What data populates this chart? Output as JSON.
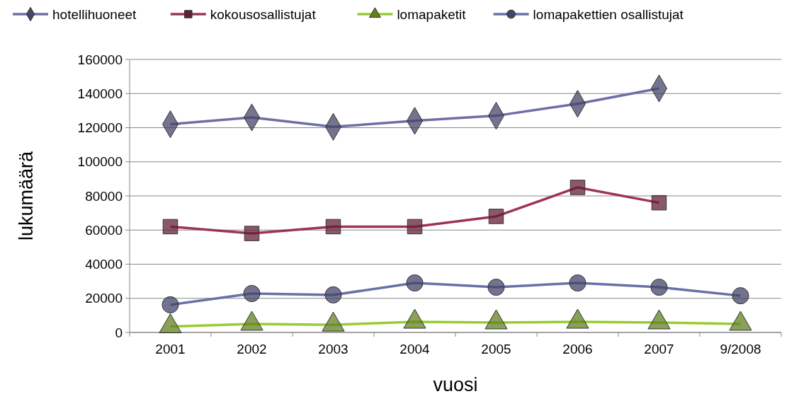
{
  "chart_data": {
    "type": "line",
    "xlabel": "vuosi",
    "ylabel": "lukumäärä",
    "categories": [
      "2001",
      "2002",
      "2003",
      "2004",
      "2005",
      "2006",
      "2007",
      "9/2008"
    ],
    "series": [
      {
        "name": "hotellihuoneet",
        "color": "#6e6ea6",
        "marker": "diamond",
        "values": [
          122000,
          126000,
          120500,
          124000,
          127000,
          134000,
          143000,
          null
        ]
      },
      {
        "name": "kokousosallistujat",
        "color": "#9e3355",
        "marker": "square",
        "values": [
          62000,
          58000,
          62000,
          62000,
          68000,
          85000,
          76000,
          null
        ]
      },
      {
        "name": "lomapaketit",
        "color": "#99cc33",
        "marker": "triangle",
        "values": [
          3500,
          5000,
          4500,
          6200,
          5800,
          6200,
          5800,
          5000
        ]
      },
      {
        "name": "lomapakettien osallistujat",
        "color": "#6a6fa8",
        "marker": "circle",
        "values": [
          16200,
          22800,
          22000,
          29000,
          26500,
          29000,
          26500,
          21500
        ]
      }
    ],
    "ylim": [
      0,
      160000
    ],
    "yticks": [
      0,
      20000,
      40000,
      60000,
      80000,
      100000,
      120000,
      140000,
      160000
    ],
    "grid": "y",
    "legend": "top"
  }
}
